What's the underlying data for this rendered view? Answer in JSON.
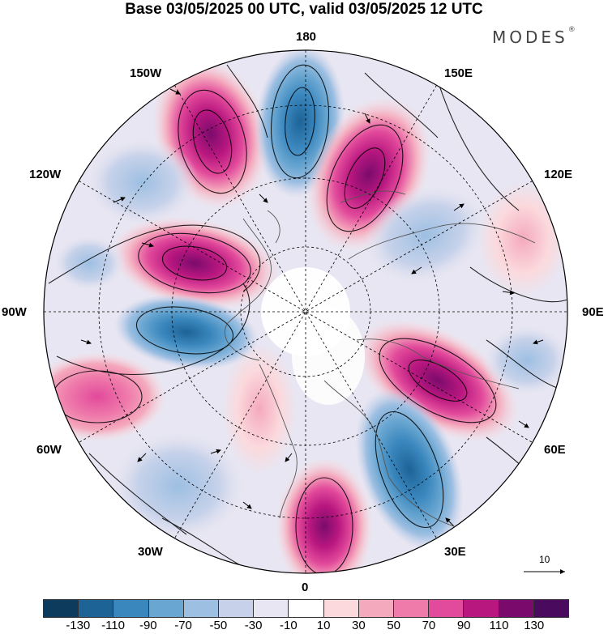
{
  "title": "Base 03/05/2025 00 UTC, valid 03/05/2025 12 UTC",
  "brand": {
    "name": "MODES",
    "mark": "®"
  },
  "longitude_labels": {
    "top": "180",
    "top_left": "150W",
    "top_right": "150E",
    "upper_left": "120W",
    "upper_right": "120E",
    "left": "90W",
    "right": "90E",
    "lower_left": "60W",
    "lower_right": "60E",
    "bottom_left": "30W",
    "bottom_right": "30E",
    "bottom": "0"
  },
  "vector_scale": {
    "label": "10",
    "icon": "arrow-right-icon"
  },
  "colorbar": {
    "colors": [
      "#0d3b5e",
      "#1d6396",
      "#3a87be",
      "#69a6d1",
      "#9dbfe2",
      "#c7d2ea",
      "#e8e6f2",
      "#ffffff",
      "#fbd9dc",
      "#f4a9bd",
      "#ef7bab",
      "#e24a9b",
      "#b8177f",
      "#7a0b6c",
      "#4a0a5e"
    ],
    "ticks": [
      "-130",
      "-110",
      "-90",
      "-70",
      "-50",
      "-30",
      "-10",
      "10",
      "30",
      "50",
      "70",
      "90",
      "110",
      "130"
    ]
  },
  "map": {
    "projection": "north-polar-stereographic",
    "field": "shaded anomaly with streamlines and wind vectors",
    "coastlines": true,
    "graticule": true
  }
}
